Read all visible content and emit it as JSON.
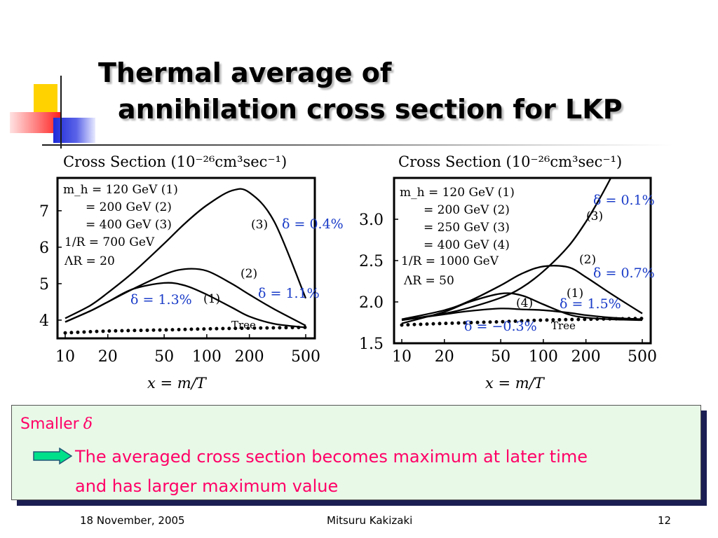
{
  "slide": {
    "title_line1": "Thermal average of",
    "title_line2": "annihilation cross section for LKP"
  },
  "chart_data": [
    {
      "type": "line",
      "title": "Cross Section (10⁻²⁶cm³sec⁻¹)",
      "xlabel": "x = m/T",
      "x_scale": "log",
      "xlim": [
        10,
        500
      ],
      "ylim": [
        3.5,
        7.9
      ],
      "xticks": [
        "10",
        "20",
        "50",
        "100",
        "200",
        "500"
      ],
      "yticks": [
        "4",
        "5",
        "6",
        "7"
      ],
      "params": [
        "m_h = 120 GeV (1)",
        "= 200 GeV (2)",
        "= 400 GeV (3)",
        "1/R = 700 GeV",
        "ΛR = 20"
      ],
      "series": [
        {
          "name": "(1)",
          "style": "solid",
          "x": [
            10,
            15,
            20,
            30,
            50,
            70,
            100,
            150,
            200,
            300,
            500
          ],
          "y": [
            3.95,
            4.25,
            4.5,
            4.85,
            5.02,
            4.95,
            4.7,
            4.35,
            4.1,
            3.9,
            3.8
          ]
        },
        {
          "name": "(2)",
          "style": "solid",
          "x": [
            10,
            15,
            20,
            30,
            50,
            70,
            100,
            150,
            200,
            300,
            500
          ],
          "y": [
            3.95,
            4.25,
            4.5,
            4.85,
            5.25,
            5.4,
            5.35,
            5.0,
            4.7,
            4.3,
            3.85
          ]
        },
        {
          "name": "(3)",
          "style": "solid",
          "x": [
            10,
            15,
            20,
            30,
            50,
            70,
            100,
            150,
            200,
            300,
            500
          ],
          "y": [
            4.05,
            4.4,
            4.75,
            5.3,
            6.1,
            6.65,
            7.15,
            7.55,
            7.5,
            6.7,
            4.6
          ]
        },
        {
          "name": "Tree",
          "style": "dotted",
          "x": [
            10,
            20,
            50,
            100,
            200,
            500
          ],
          "y": [
            3.65,
            3.7,
            3.73,
            3.76,
            3.78,
            3.8
          ]
        }
      ],
      "annotations": [
        "(3)",
        "(2)",
        "(1)",
        "Tree"
      ],
      "delta_labels": [
        "δ = 0.4%",
        "δ = 1.1%",
        "δ = 1.3%"
      ]
    },
    {
      "type": "line",
      "title": "Cross Section (10⁻²⁶cm³sec⁻¹)",
      "xlabel": "x = m/T",
      "x_scale": "log",
      "xlim": [
        10,
        500
      ],
      "ylim": [
        1.5,
        3.5
      ],
      "xticks": [
        "10",
        "20",
        "50",
        "100",
        "200",
        "500"
      ],
      "yticks": [
        "1.5",
        "2.0",
        "2.5",
        "3.0"
      ],
      "params": [
        "m_h = 120 GeV (1)",
        "= 200 GeV (2)",
        "= 250 GeV (3)",
        "= 400 GeV (4)",
        "1/R = 1000 GeV",
        "ΛR = 50"
      ],
      "series": [
        {
          "name": "(1)",
          "style": "solid",
          "x": [
            10,
            20,
            30,
            50,
            70,
            100,
            150,
            200,
            300,
            500
          ],
          "y": [
            1.78,
            1.85,
            1.89,
            1.92,
            1.91,
            1.9,
            1.87,
            1.84,
            1.81,
            1.79
          ]
        },
        {
          "name": "(2)",
          "style": "solid",
          "x": [
            10,
            20,
            30,
            50,
            70,
            100,
            150,
            200,
            300,
            500
          ],
          "y": [
            1.79,
            1.9,
            2.01,
            2.2,
            2.34,
            2.43,
            2.42,
            2.3,
            2.1,
            1.86
          ]
        },
        {
          "name": "(3)",
          "style": "solid",
          "x": [
            10,
            20,
            30,
            50,
            70,
            100,
            150,
            200,
            250,
            300
          ],
          "y": [
            1.78,
            1.86,
            1.93,
            2.05,
            2.17,
            2.37,
            2.67,
            2.97,
            3.25,
            3.5
          ]
        },
        {
          "name": "(4)",
          "style": "solid",
          "x": [
            10,
            20,
            30,
            50,
            70,
            100,
            150,
            200,
            300,
            500
          ],
          "y": [
            1.74,
            1.88,
            2.0,
            2.1,
            2.08,
            1.97,
            1.85,
            1.81,
            1.79,
            1.78
          ]
        },
        {
          "name": "Tree",
          "style": "dotted",
          "x": [
            10,
            20,
            50,
            100,
            200,
            500
          ],
          "y": [
            1.72,
            1.74,
            1.76,
            1.78,
            1.79,
            1.8
          ]
        }
      ],
      "annotations": [
        "(3)",
        "(2)",
        "(1)",
        "(4)",
        "Tree"
      ],
      "delta_labels": [
        "δ = 0.1%",
        "δ = 0.7%",
        "δ = 1.5%",
        "δ = −0.3%"
      ]
    }
  ],
  "summary": {
    "prefix": "Smaller",
    "symbol": "δ",
    "line1": "The averaged cross section becomes maximum at later time",
    "line2": "and has larger maximum value"
  },
  "footer": {
    "date": "18 November, 2005",
    "author": "Mitsuru Kakizaki",
    "page": "12"
  },
  "colors": {
    "delta_label": "#1a3cc8",
    "summary_text": "#ff0066",
    "summary_bg": "#e8f9e8",
    "arrow_fill": "#00e08a"
  }
}
